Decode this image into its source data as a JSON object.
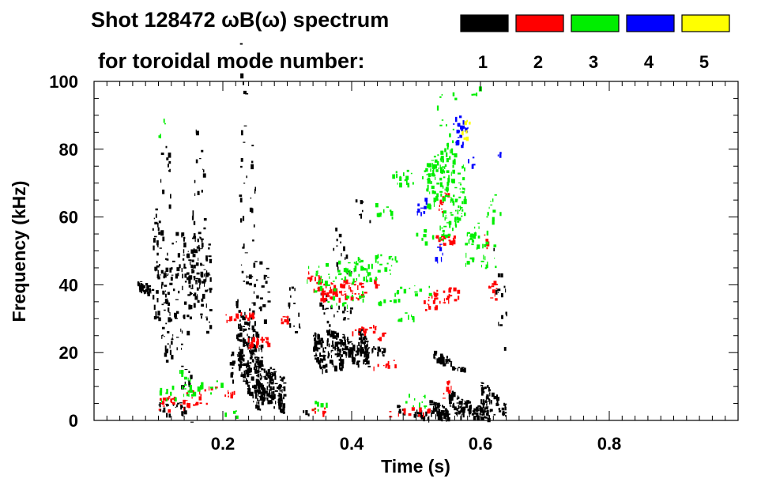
{
  "chart_data": {
    "type": "scatter",
    "title_line1": "Shot 128472 ωB(ω) spectrum",
    "title_line2": "for toroidal mode number:",
    "xlabel": "Time (s)",
    "ylabel": "Frequency (kHz)",
    "xlim": [
      0.0,
      1.0
    ],
    "ylim": [
      0,
      100
    ],
    "x_ticks": [
      0.2,
      0.4,
      0.6,
      0.8
    ],
    "x_tick_labels": [
      "0.2",
      "0.4",
      "0.6",
      "0.8"
    ],
    "y_ticks": [
      0,
      20,
      40,
      60,
      80,
      100
    ],
    "y_tick_labels": [
      "0",
      "20",
      "40",
      "60",
      "80",
      "100"
    ],
    "grid": false,
    "legend_position": "top-right",
    "legend": [
      {
        "label": "1",
        "color": "#000000"
      },
      {
        "label": "2",
        "color": "#ff0000"
      },
      {
        "label": "3",
        "color": "#00ee00"
      },
      {
        "label": "4",
        "color": "#0000ff"
      },
      {
        "label": "5",
        "color": "#ffff00"
      }
    ],
    "series": [
      {
        "mode": "1",
        "color": "#000000",
        "blobs": [
          [
            0.065,
            0.09,
            38,
            41,
            1,
            30
          ],
          [
            0.09,
            0.12,
            22,
            56,
            1,
            90
          ],
          [
            0.1,
            0.12,
            2,
            5,
            1,
            10
          ],
          [
            0.1,
            0.12,
            64,
            82,
            1,
            12
          ],
          [
            0.12,
            0.15,
            10,
            50,
            1,
            50
          ],
          [
            0.135,
            0.155,
            38,
            52,
            1,
            40
          ],
          [
            0.15,
            0.175,
            32,
            57,
            1,
            70
          ],
          [
            0.155,
            0.172,
            60,
            82,
            1,
            15
          ],
          [
            0.12,
            0.14,
            3,
            6,
            1,
            15
          ],
          [
            0.175,
            0.18,
            30,
            52,
            1,
            15
          ],
          [
            0.21,
            0.215,
            12,
            22,
            1,
            10
          ],
          [
            0.22,
            0.26,
            8,
            30,
            1,
            200
          ],
          [
            0.225,
            0.25,
            30,
            95,
            1,
            45
          ],
          [
            0.24,
            0.27,
            30,
            55,
            1,
            20
          ],
          [
            0.25,
            0.295,
            5,
            16,
            1,
            160
          ],
          [
            0.3,
            0.32,
            25,
            40,
            1,
            15
          ],
          [
            0.32,
            0.34,
            2,
            3,
            1,
            4
          ],
          [
            0.34,
            0.36,
            16,
            25,
            1,
            60
          ],
          [
            0.36,
            0.385,
            16,
            27,
            1,
            70
          ],
          [
            0.385,
            0.41,
            18,
            24,
            1,
            60
          ],
          [
            0.41,
            0.425,
            18,
            26,
            1,
            60
          ],
          [
            0.42,
            0.45,
            20,
            22,
            1,
            20
          ],
          [
            0.35,
            0.4,
            30,
            36,
            1,
            20
          ],
          [
            0.37,
            0.4,
            42,
            55,
            1,
            15
          ],
          [
            0.405,
            0.43,
            60,
            65,
            1,
            8
          ],
          [
            0.525,
            0.555,
            17,
            20,
            1,
            30
          ],
          [
            0.555,
            0.575,
            15,
            16,
            1,
            15
          ],
          [
            0.47,
            0.48,
            2,
            4,
            1,
            6
          ],
          [
            0.495,
            0.52,
            1,
            3,
            1,
            20
          ],
          [
            0.52,
            0.55,
            1,
            5,
            1,
            60
          ],
          [
            0.55,
            0.575,
            2,
            8,
            1,
            50
          ],
          [
            0.575,
            0.615,
            1,
            5,
            1,
            60
          ],
          [
            0.6,
            0.625,
            3,
            10,
            1,
            40
          ],
          [
            0.62,
            0.64,
            26,
            50,
            1,
            15
          ],
          [
            0.625,
            0.64,
            2,
            6,
            1,
            15
          ]
        ]
      },
      {
        "mode": "2",
        "color": "#ff0000",
        "blobs": [
          [
            0.2,
            0.25,
            30,
            32,
            -1,
            20
          ],
          [
            0.235,
            0.27,
            22,
            25,
            -1,
            25
          ],
          [
            0.29,
            0.3,
            29,
            31,
            0,
            10
          ],
          [
            0.33,
            0.34,
            42,
            44,
            0,
            6
          ],
          [
            0.34,
            0.42,
            37,
            42,
            1,
            60
          ],
          [
            0.35,
            0.4,
            36,
            39,
            0,
            25
          ],
          [
            0.4,
            0.44,
            26,
            28,
            -1,
            15
          ],
          [
            0.44,
            0.45,
            24,
            26,
            0,
            5
          ],
          [
            0.43,
            0.47,
            16,
            18,
            -1,
            10
          ],
          [
            0.51,
            0.565,
            34,
            39,
            -1,
            35
          ],
          [
            0.535,
            0.55,
            62,
            67,
            -1,
            12
          ],
          [
            0.53,
            0.56,
            52,
            55,
            0,
            25
          ],
          [
            0.43,
            0.44,
            40,
            42,
            0,
            5
          ],
          [
            0.1,
            0.19,
            4,
            9,
            -1,
            40
          ],
          [
            0.2,
            0.22,
            7,
            9,
            0,
            8
          ],
          [
            0.33,
            0.36,
            2,
            4,
            0,
            8
          ],
          [
            0.45,
            0.52,
            1,
            4,
            0,
            14
          ],
          [
            0.54,
            0.56,
            5,
            12,
            0,
            8
          ],
          [
            0.61,
            0.625,
            36,
            44,
            0,
            12
          ],
          [
            0.6,
            0.61,
            50,
            55,
            0,
            6
          ]
        ]
      },
      {
        "mode": "3",
        "color": "#00ee00",
        "blobs": [
          [
            0.33,
            0.47,
            40,
            48,
            -1,
            80
          ],
          [
            0.44,
            0.52,
            36,
            41,
            -1,
            20
          ],
          [
            0.36,
            0.42,
            34,
            38,
            -1,
            15
          ],
          [
            0.47,
            0.5,
            30,
            32,
            -1,
            8
          ],
          [
            0.43,
            0.47,
            60,
            64,
            1,
            10
          ],
          [
            0.46,
            0.5,
            70,
            74,
            0,
            15
          ],
          [
            0.5,
            0.52,
            71,
            75,
            0,
            8
          ],
          [
            0.515,
            0.56,
            66,
            80,
            -1,
            90
          ],
          [
            0.54,
            0.575,
            57,
            72,
            -1,
            70
          ],
          [
            0.575,
            0.61,
            48,
            58,
            -1,
            30
          ],
          [
            0.6,
            0.625,
            44,
            52,
            0,
            10
          ],
          [
            0.61,
            0.63,
            59,
            68,
            0,
            10
          ],
          [
            0.5,
            0.54,
            53,
            57,
            -1,
            12
          ],
          [
            0.53,
            0.56,
            84,
            98,
            0,
            10
          ],
          [
            0.58,
            0.6,
            96,
            99,
            0,
            4
          ],
          [
            0.1,
            0.2,
            7,
            11,
            -1,
            30
          ],
          [
            0.1,
            0.115,
            84,
            91,
            0,
            4
          ],
          [
            0.13,
            0.15,
            12,
            15,
            0,
            6
          ],
          [
            0.33,
            0.37,
            3,
            6,
            0,
            6
          ],
          [
            0.48,
            0.52,
            4,
            8,
            0,
            10
          ],
          [
            0.2,
            0.22,
            1,
            3,
            0,
            4
          ]
        ]
      },
      {
        "mode": "4",
        "color": "#0000ff",
        "blobs": [
          [
            0.495,
            0.515,
            61,
            65,
            -1,
            10
          ],
          [
            0.525,
            0.545,
            47,
            52,
            -1,
            8
          ],
          [
            0.56,
            0.58,
            80,
            90,
            -1,
            18
          ],
          [
            0.555,
            0.57,
            87,
            90,
            0,
            4
          ],
          [
            0.58,
            0.59,
            74,
            78,
            0,
            4
          ],
          [
            0.625,
            0.63,
            78,
            81,
            0,
            3
          ],
          [
            0.56,
            0.57,
            82,
            84,
            0,
            3
          ]
        ]
      },
      {
        "mode": "5",
        "color": "#ffff00",
        "blobs": [
          [
            0.57,
            0.58,
            83,
            86,
            0,
            6
          ],
          [
            0.575,
            0.585,
            88,
            89,
            0,
            3
          ]
        ]
      }
    ]
  }
}
